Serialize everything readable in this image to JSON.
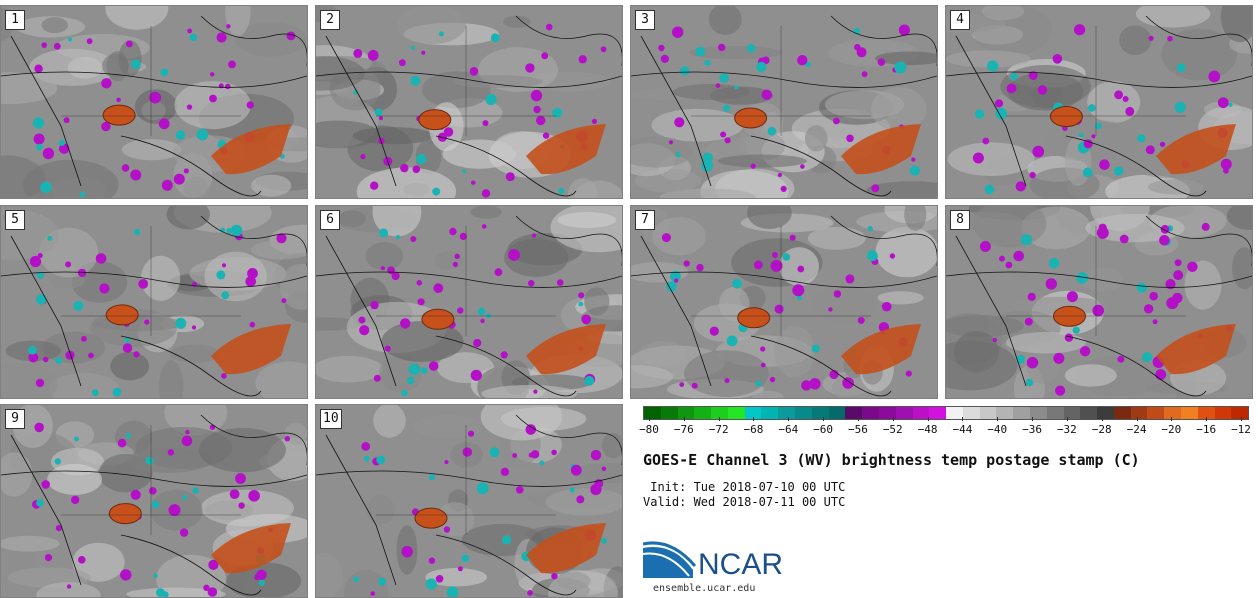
{
  "panels": [
    {
      "label": "1"
    },
    {
      "label": "2"
    },
    {
      "label": "3"
    },
    {
      "label": "4"
    },
    {
      "label": "5"
    },
    {
      "label": "6"
    },
    {
      "label": "7"
    },
    {
      "label": "8"
    },
    {
      "label": "9"
    },
    {
      "label": "10"
    }
  ],
  "colorbar": {
    "colors": [
      "#006400",
      "#087a08",
      "#0f980f",
      "#14b014",
      "#1ccf1c",
      "#24e624",
      "#00c8c8",
      "#00b4b4",
      "#0a9c9c",
      "#088a8a",
      "#067a7a",
      "#056a6a",
      "#5a0a6a",
      "#7a0a8a",
      "#8c0a9c",
      "#a010b0",
      "#bb10c8",
      "#d410e0",
      "#f2f2f2",
      "#dcdcdc",
      "#c8c8c8",
      "#b4b4b4",
      "#a0a0a0",
      "#8c8c8c",
      "#787878",
      "#646464",
      "#505050",
      "#3c3c3c",
      "#7a2a10",
      "#a03a14",
      "#c04a18",
      "#e06a20",
      "#f08020",
      "#e05010",
      "#d03808",
      "#c02800"
    ],
    "ticks": [
      "−80",
      "−76",
      "−72",
      "−68",
      "−64",
      "−60",
      "−56",
      "−52",
      "−48",
      "−44",
      "−40",
      "−36",
      "−32",
      "−28",
      "−24",
      "−20",
      "−16",
      "−12"
    ]
  },
  "title": "GOES-E Channel 3 (WV) brightness temp postage stamp (C)",
  "init": " Init: Tue 2018-07-10 00 UTC",
  "valid": "Valid: Wed 2018-07-11 00 UTC",
  "logo_text": "NCAR",
  "url": "ensemble.ucar.edu"
}
